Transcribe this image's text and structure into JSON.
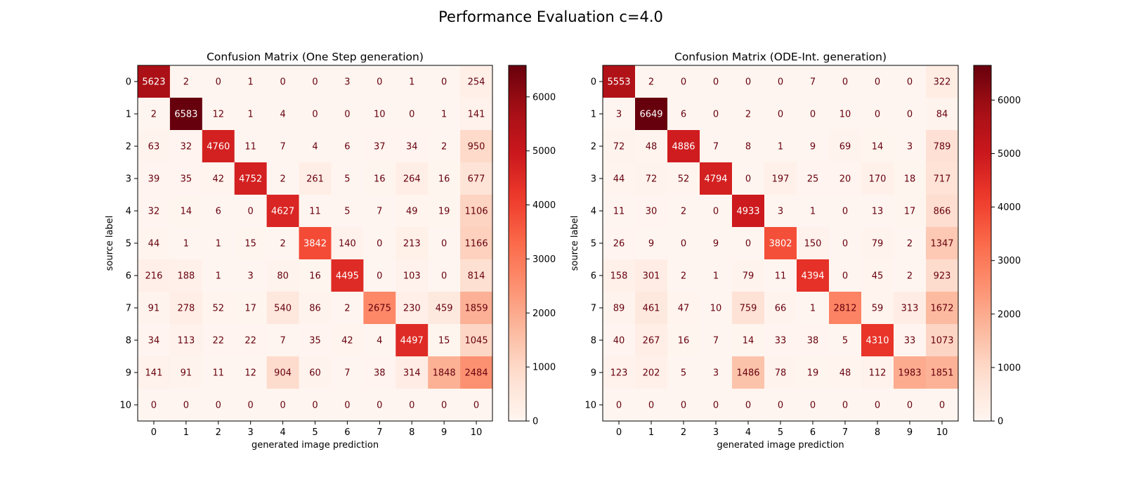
{
  "figure": {
    "suptitle": "Performance Evaluation c=4.0"
  },
  "chart_data": [
    {
      "type": "heatmap",
      "title": "Confusion Matrix (One Step generation)",
      "xlabel": "generated image prediction",
      "ylabel": "source label",
      "x_categories": [
        "0",
        "1",
        "2",
        "3",
        "4",
        "5",
        "6",
        "7",
        "8",
        "9",
        "10"
      ],
      "y_categories": [
        "0",
        "1",
        "2",
        "3",
        "4",
        "5",
        "6",
        "7",
        "8",
        "9",
        "10"
      ],
      "colormap": "Reds",
      "color_range": [
        0,
        6583
      ],
      "colorbar_ticks": [
        0,
        1000,
        2000,
        3000,
        4000,
        5000,
        6000
      ],
      "matrix": [
        [
          5623,
          2,
          0,
          1,
          0,
          0,
          3,
          0,
          1,
          0,
          254
        ],
        [
          2,
          6583,
          12,
          1,
          4,
          0,
          0,
          10,
          0,
          1,
          141
        ],
        [
          63,
          32,
          4760,
          11,
          7,
          4,
          6,
          37,
          34,
          2,
          950
        ],
        [
          39,
          35,
          42,
          4752,
          2,
          261,
          5,
          16,
          264,
          16,
          677
        ],
        [
          32,
          14,
          6,
          0,
          4627,
          11,
          5,
          7,
          49,
          19,
          1106
        ],
        [
          44,
          1,
          1,
          15,
          2,
          3842,
          140,
          0,
          213,
          0,
          1166
        ],
        [
          216,
          188,
          1,
          3,
          80,
          16,
          4495,
          0,
          103,
          0,
          814
        ],
        [
          91,
          278,
          52,
          17,
          540,
          86,
          2,
          2675,
          230,
          459,
          1859
        ],
        [
          34,
          113,
          22,
          22,
          7,
          35,
          42,
          4,
          4497,
          15,
          1045
        ],
        [
          141,
          91,
          11,
          12,
          904,
          60,
          7,
          38,
          314,
          1848,
          2484
        ],
        [
          0,
          0,
          0,
          0,
          0,
          0,
          0,
          0,
          0,
          0,
          0
        ]
      ]
    },
    {
      "type": "heatmap",
      "title": "Confusion Matrix (ODE-Int. generation)",
      "xlabel": "generated image prediction",
      "ylabel": "source label",
      "x_categories": [
        "0",
        "1",
        "2",
        "3",
        "4",
        "5",
        "6",
        "7",
        "8",
        "9",
        "10"
      ],
      "y_categories": [
        "0",
        "1",
        "2",
        "3",
        "4",
        "5",
        "6",
        "7",
        "8",
        "9",
        "10"
      ],
      "colormap": "Reds",
      "color_range": [
        0,
        6649
      ],
      "colorbar_ticks": [
        0,
        1000,
        2000,
        3000,
        4000,
        5000,
        6000
      ],
      "matrix": [
        [
          5553,
          2,
          0,
          0,
          0,
          0,
          7,
          0,
          0,
          0,
          322
        ],
        [
          3,
          6649,
          6,
          0,
          2,
          0,
          0,
          10,
          0,
          0,
          84
        ],
        [
          72,
          48,
          4886,
          7,
          8,
          1,
          9,
          69,
          14,
          3,
          789
        ],
        [
          44,
          72,
          52,
          4794,
          0,
          197,
          25,
          20,
          170,
          18,
          717
        ],
        [
          11,
          30,
          2,
          0,
          4933,
          3,
          1,
          0,
          13,
          17,
          866
        ],
        [
          26,
          9,
          0,
          9,
          0,
          3802,
          150,
          0,
          79,
          2,
          1347
        ],
        [
          158,
          301,
          2,
          1,
          79,
          11,
          4394,
          0,
          45,
          2,
          923
        ],
        [
          89,
          461,
          47,
          10,
          759,
          66,
          1,
          2812,
          59,
          313,
          1672
        ],
        [
          40,
          267,
          16,
          7,
          14,
          33,
          38,
          5,
          4310,
          33,
          1073
        ],
        [
          123,
          202,
          5,
          3,
          1486,
          78,
          19,
          48,
          112,
          1983,
          1851
        ],
        [
          0,
          0,
          0,
          0,
          0,
          0,
          0,
          0,
          0,
          0,
          0
        ]
      ]
    }
  ]
}
